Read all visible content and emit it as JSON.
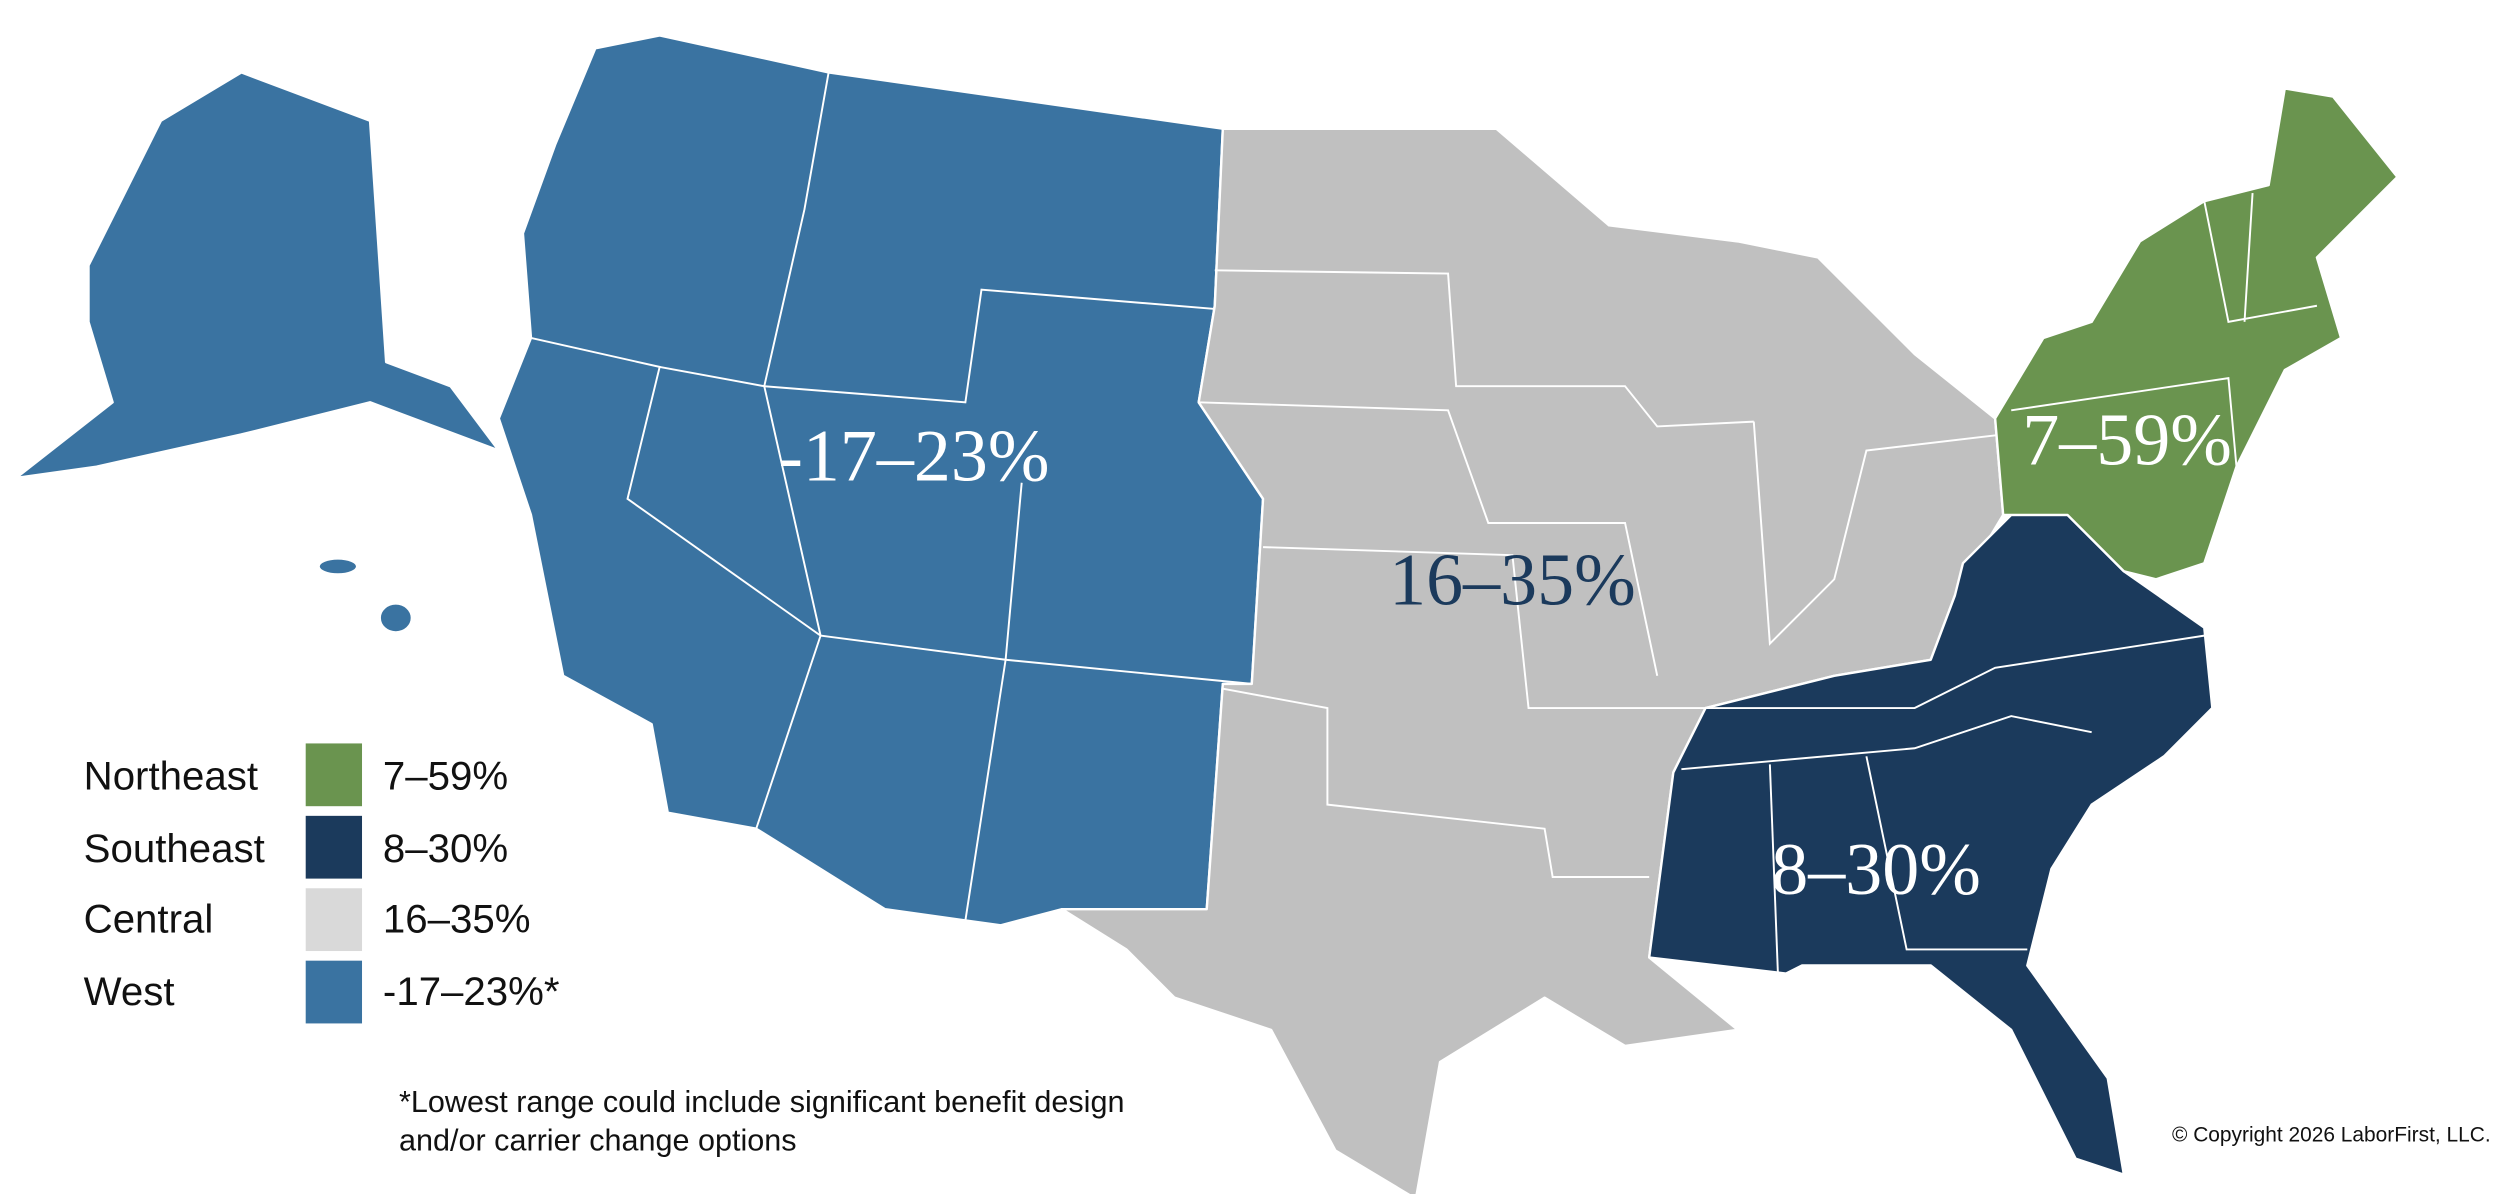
{
  "regions": [
    {
      "name": "Northeast",
      "range": "7–59%",
      "map_label": "7–59%",
      "color": "#6a944f",
      "label_color": "#ffffff"
    },
    {
      "name": "Southeast",
      "range": "8–30%",
      "map_label": "8–30%",
      "color": "#1b3a5c",
      "label_color": "#ffffff"
    },
    {
      "name": "Central",
      "range": "16–35%",
      "map_label": "16–35%",
      "color": "#c0c0c0",
      "label_color": "#1b3a5c"
    },
    {
      "name": "West",
      "range": "-17–23%*",
      "map_label": "-17–23%",
      "color": "#3a73a1",
      "label_color": "#ffffff"
    }
  ],
  "footnote": [
    "*Lowest range could include significant benefit design",
    "and/or carrier change options"
  ],
  "copyright": "© Copyright 2026 LaborFirst, LLC."
}
